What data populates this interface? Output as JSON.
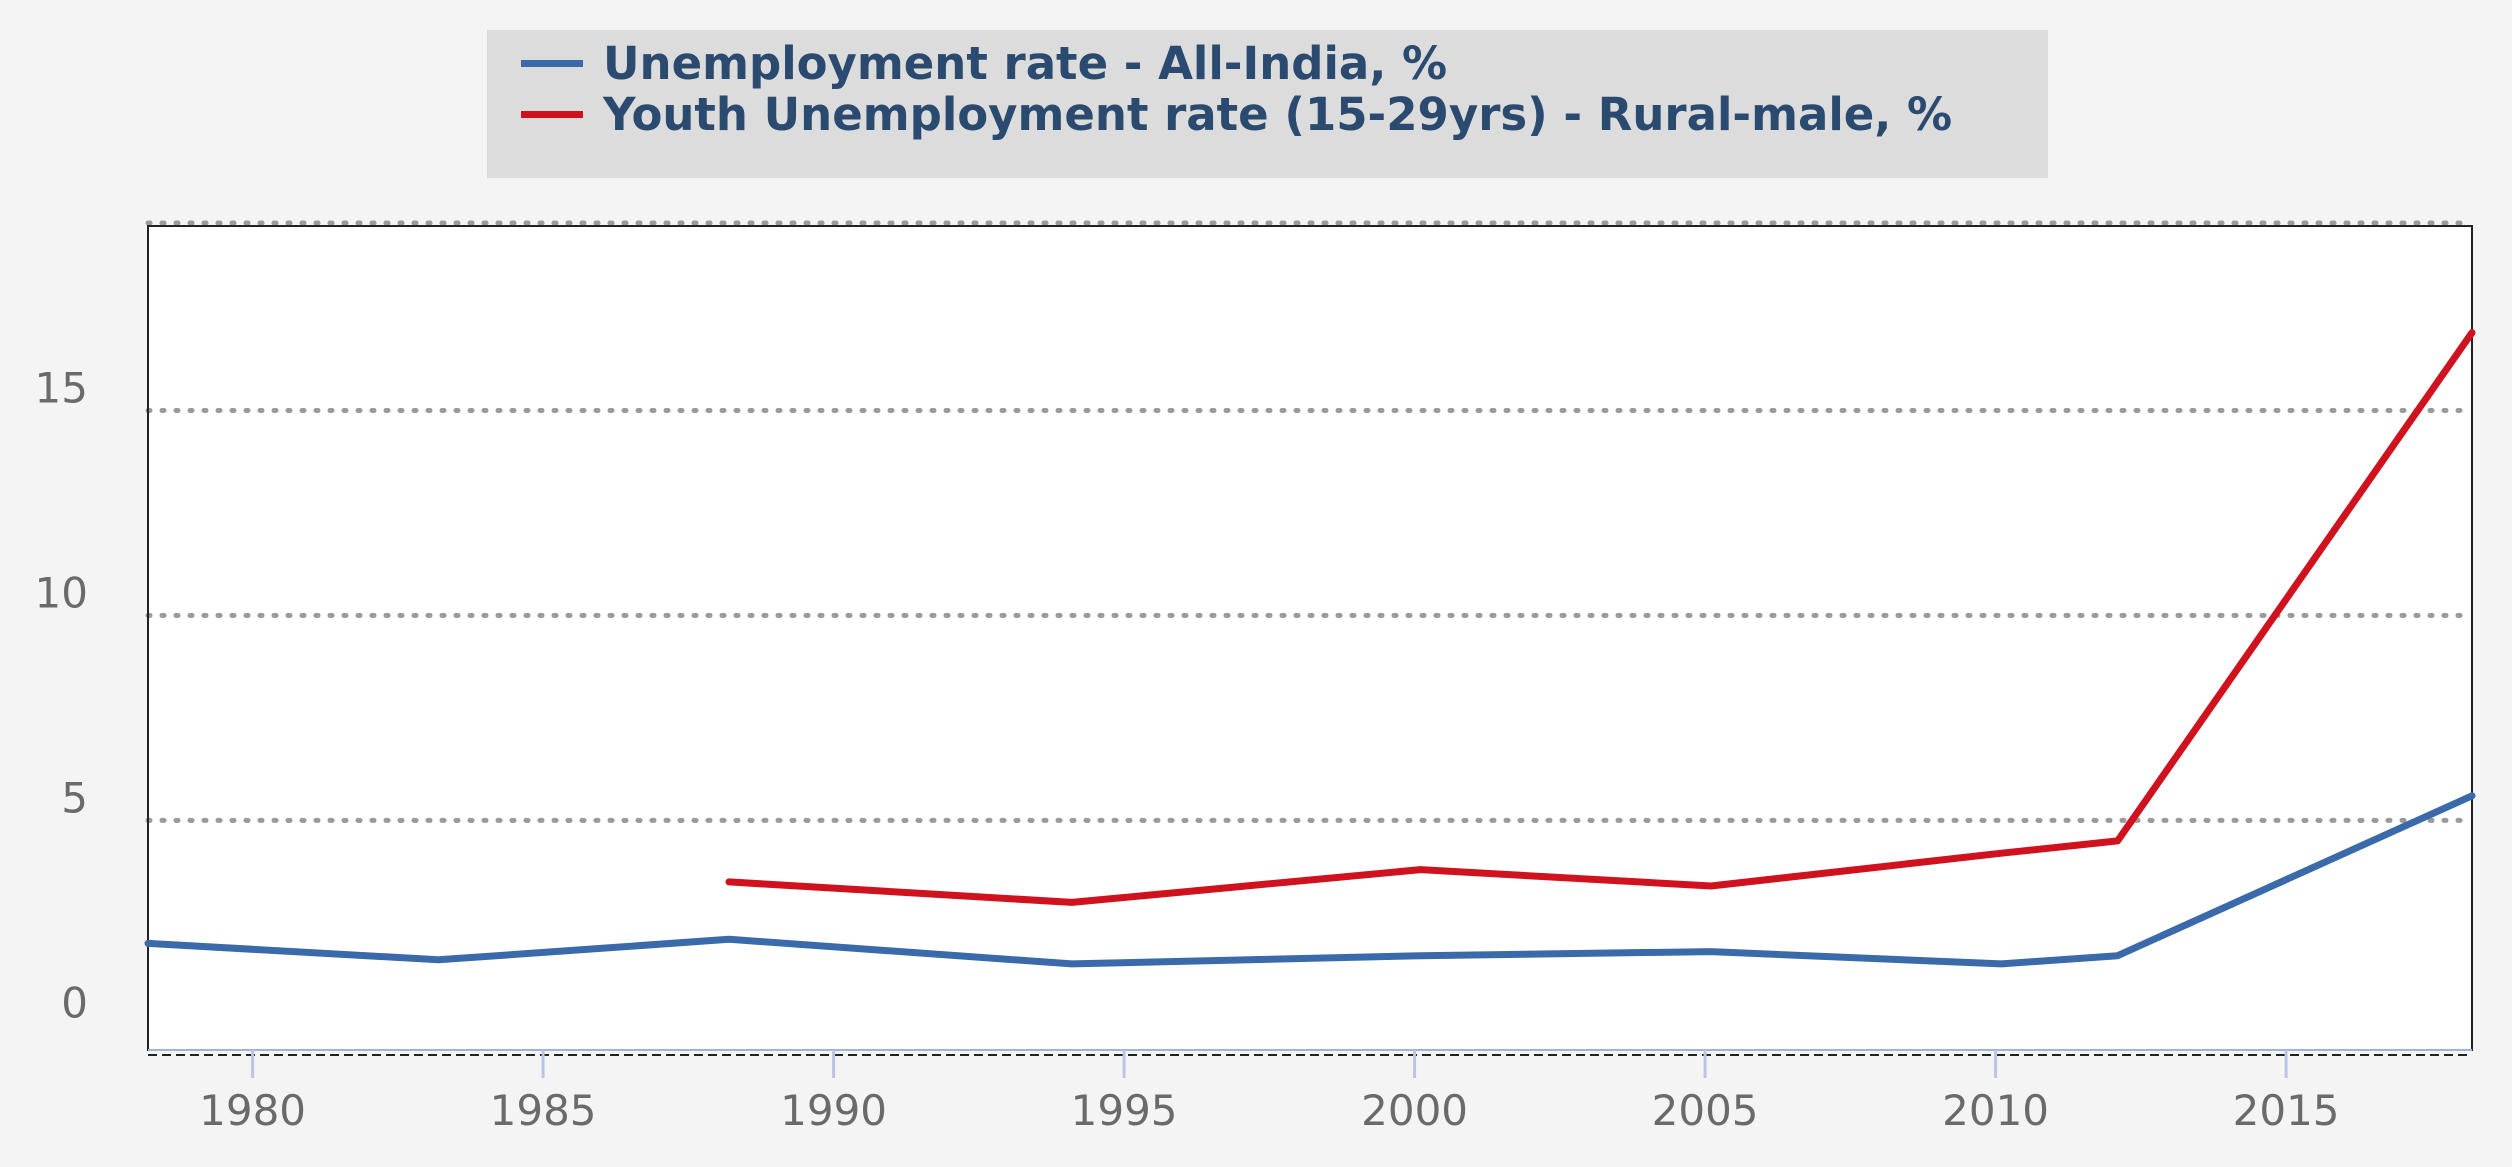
{
  "chart_data": {
    "type": "line",
    "title": "",
    "xlabel": "",
    "ylabel": "",
    "xlim": [
      1978.2,
      2018.2
    ],
    "ylim": [
      -0.6,
      19.5
    ],
    "x_ticks": [
      1980,
      1985,
      1990,
      1995,
      2000,
      2005,
      2010,
      2015
    ],
    "y_ticks": [
      0,
      5,
      10,
      15
    ],
    "grid": "horizontal dotted",
    "legend_position": "top-center",
    "series": [
      {
        "name": "Unemployment rate - All-India, %",
        "color": "#3a6aa9",
        "points": [
          [
            1978.2,
            2.0
          ],
          [
            1983.2,
            1.6
          ],
          [
            1988.2,
            2.1
          ],
          [
            1994.1,
            1.5
          ],
          [
            2000.1,
            1.7
          ],
          [
            2005.1,
            1.8
          ],
          [
            2010.1,
            1.5
          ],
          [
            2012.1,
            1.7
          ],
          [
            2018.2,
            5.6
          ]
        ]
      },
      {
        "name": "Youth Unemployment rate (15-29yrs) - Rural-male, %",
        "color": "#d0111e",
        "points": [
          [
            1988.2,
            3.5
          ],
          [
            1994.1,
            3.0
          ],
          [
            2000.1,
            3.8
          ],
          [
            2005.1,
            3.4
          ],
          [
            2010.1,
            4.2
          ],
          [
            2012.1,
            4.5
          ],
          [
            2018.2,
            16.9
          ]
        ]
      }
    ]
  }
}
